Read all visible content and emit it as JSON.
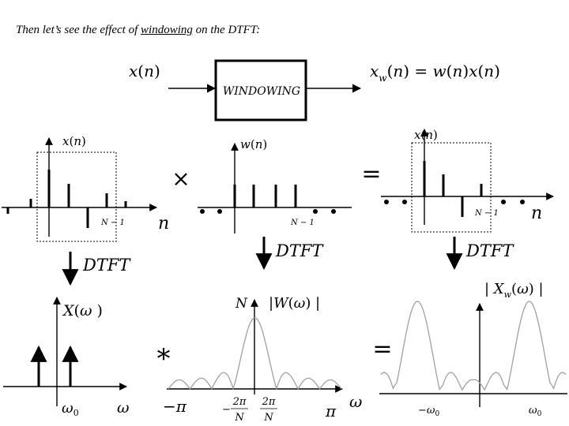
{
  "heading": {
    "before": "Then let’s see the effect of ",
    "underlined": "windowing",
    "after": " on the DTFT:"
  },
  "block": {
    "input_label": "x(n)",
    "box_label": "WINDOWING",
    "output_label": "x_w(n) = w(n)x(n)"
  },
  "row1": {
    "signal": {
      "ylabel": "x(n)",
      "xlabel": "n",
      "end_tick": "N − 1"
    },
    "window": {
      "ylabel": "w(n)",
      "end_tick": "N − 1"
    },
    "product": {
      "ylabel": "x(n)",
      "xlabel": "n",
      "end_tick": "N − 1"
    },
    "times_op": "×",
    "equals_op": "="
  },
  "arrows": {
    "label": "DTFT"
  },
  "row2": {
    "spectrum": {
      "ylabel": "X(ω)",
      "xlabel": "ω",
      "tick": "ω0"
    },
    "kernel": {
      "peak": "N",
      "ylabel": "|W(ω)|",
      "left_tick": "−π",
      "right_tick": "π",
      "xlabel": "ω",
      "null_left": "−2π/N",
      "null_right": "2π/N"
    },
    "result": {
      "ylabel": "|X_w(ω)|",
      "left_tick": "−ω0",
      "right_tick": "ω0"
    },
    "conv_op": "*",
    "equals_op": "="
  },
  "colors": {
    "ink": "#000000",
    "curve": "#a0a0a0",
    "dashed_box": "#000000"
  }
}
